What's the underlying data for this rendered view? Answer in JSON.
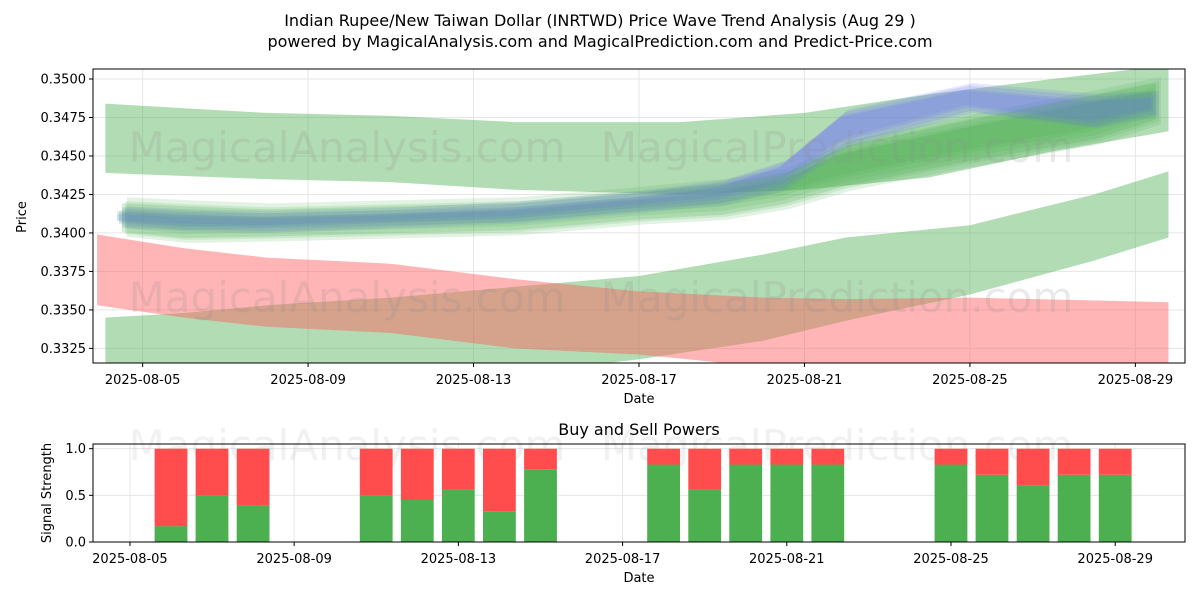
{
  "title_line1": "Indian Rupee/New Taiwan Dollar (INRTWD) Price Wave Trend Analysis (Aug 29 )",
  "title_line2": "powered by MagicalAnalysis.com and MagicalPrediction.com and Predict-Price.com",
  "watermark_left": "MagicalAnalysis.com",
  "watermark_right": "MagicalPrediction.com",
  "colors": {
    "green_band": "#4caf50",
    "red_band": "#ff5a5a",
    "blue_band": "#6a6aff",
    "buy_bar": "#4caf50",
    "sell_bar": "#ff4d4d",
    "olive_overlap": "#a8956a"
  },
  "chart_data": [
    {
      "type": "area",
      "title": "",
      "xlabel": "Date",
      "ylabel": "Price",
      "x_range": [
        "2025-08-03.8",
        "2025-08-30.2"
      ],
      "ylim": [
        0.33155,
        0.35065
      ],
      "yticks": [
        0.3325,
        0.335,
        0.3375,
        0.34,
        0.3425,
        0.345,
        0.3475,
        0.35
      ],
      "ytick_labels": [
        "0.3325",
        "0.3350",
        "0.3375",
        "0.3400",
        "0.3425",
        "0.3450",
        "0.3475",
        "0.3500"
      ],
      "xtick_labels": [
        "2025-08-05",
        "2025-08-09",
        "2025-08-13",
        "2025-08-17",
        "2025-08-21",
        "2025-08-25",
        "2025-08-29"
      ],
      "grid": true,
      "series": [
        {
          "name": "upper-green-band",
          "color": "#4caf50",
          "days": [
            4.1,
            6,
            8,
            11,
            14,
            18,
            21,
            24,
            27,
            29.8
          ],
          "low": [
            0.3439,
            0.3437,
            0.3435,
            0.3433,
            0.3428,
            0.3425,
            0.3428,
            0.3436,
            0.3453,
            0.3466
          ],
          "high": [
            0.3484,
            0.3481,
            0.3478,
            0.3476,
            0.3472,
            0.3472,
            0.3478,
            0.349,
            0.35,
            0.3509
          ]
        },
        {
          "name": "lower-green-band",
          "color": "#4caf50",
          "days": [
            4.1,
            6,
            8,
            11,
            14,
            17,
            20,
            22,
            25,
            28,
            29.8
          ],
          "low": [
            0.3298,
            0.3294,
            0.3296,
            0.33,
            0.3308,
            0.3318,
            0.333,
            0.3343,
            0.336,
            0.3382,
            0.3397
          ],
          "high": [
            0.3345,
            0.3348,
            0.3353,
            0.3358,
            0.3365,
            0.3372,
            0.3386,
            0.3397,
            0.3405,
            0.3425,
            0.344
          ]
        },
        {
          "name": "red-band",
          "color": "#ff5a5a",
          "days": [
            3.9,
            6,
            8,
            11,
            14,
            17,
            20,
            22,
            25,
            29.8
          ],
          "low": [
            0.3353,
            0.3345,
            0.3339,
            0.3335,
            0.3325,
            0.3321,
            0.3313,
            0.331,
            0.3309,
            0.3309
          ],
          "high": [
            0.3399,
            0.339,
            0.3384,
            0.338,
            0.337,
            0.3362,
            0.3358,
            0.3357,
            0.3358,
            0.3355
          ]
        },
        {
          "name": "wave-channel-green",
          "color": "#4caf50",
          "days": [
            4.5,
            6,
            8,
            11,
            14,
            17,
            19,
            20.5,
            22,
            25,
            28,
            29.5
          ],
          "low": [
            0.3402,
            0.3398,
            0.3399,
            0.3401,
            0.3403,
            0.341,
            0.3413,
            0.342,
            0.3432,
            0.3448,
            0.3462,
            0.3475
          ],
          "high": [
            0.3418,
            0.3416,
            0.3414,
            0.3416,
            0.3418,
            0.3425,
            0.343,
            0.3437,
            0.3455,
            0.3472,
            0.3488,
            0.3496
          ]
        },
        {
          "name": "wave-channel-blue",
          "color": "#6a6aff",
          "days": [
            4.5,
            6,
            8,
            11,
            14,
            17,
            19,
            20.5,
            22,
            25,
            28,
            29.5
          ],
          "low": [
            0.3405,
            0.3403,
            0.3402,
            0.3405,
            0.3408,
            0.3415,
            0.342,
            0.343,
            0.3458,
            0.348,
            0.347,
            0.3478
          ],
          "high": [
            0.3415,
            0.3413,
            0.3412,
            0.3414,
            0.3418,
            0.3425,
            0.3432,
            0.3445,
            0.3478,
            0.3495,
            0.3488,
            0.349
          ]
        }
      ]
    },
    {
      "type": "bar",
      "title": "Buy and Sell Powers",
      "xlabel": "Date",
      "ylabel": "Signal Strength",
      "x_range": [
        "2025-08-04.1",
        "2025-08-30.7"
      ],
      "ylim": [
        0,
        1.05
      ],
      "yticks": [
        0.0,
        0.5,
        1.0
      ],
      "ytick_labels": [
        "0.0",
        "0.5",
        "1.0"
      ],
      "xtick_labels": [
        "2025-08-05",
        "2025-08-09",
        "2025-08-13",
        "2025-08-17",
        "2025-08-21",
        "2025-08-25",
        "2025-08-29"
      ],
      "grid": true,
      "categories": [
        "2025-08-06",
        "2025-08-07",
        "2025-08-08",
        "2025-08-11",
        "2025-08-12",
        "2025-08-13",
        "2025-08-14",
        "2025-08-15",
        "2025-08-18",
        "2025-08-19",
        "2025-08-20",
        "2025-08-21",
        "2025-08-22",
        "2025-08-25",
        "2025-08-26",
        "2025-08-27",
        "2025-08-28",
        "2025-08-29"
      ],
      "series": [
        {
          "name": "Buy",
          "color": "#4caf50",
          "values": [
            0.17,
            0.5,
            0.39,
            0.5,
            0.45,
            0.56,
            0.33,
            0.78,
            0.83,
            0.56,
            0.83,
            0.83,
            0.83,
            0.83,
            0.72,
            0.61,
            0.72,
            0.72
          ]
        },
        {
          "name": "Sell",
          "color": "#ff4d4d",
          "values": [
            0.83,
            0.5,
            0.61,
            0.5,
            0.55,
            0.44,
            0.67,
            0.22,
            0.17,
            0.44,
            0.17,
            0.17,
            0.17,
            0.17,
            0.28,
            0.39,
            0.28,
            0.28
          ]
        }
      ]
    }
  ]
}
